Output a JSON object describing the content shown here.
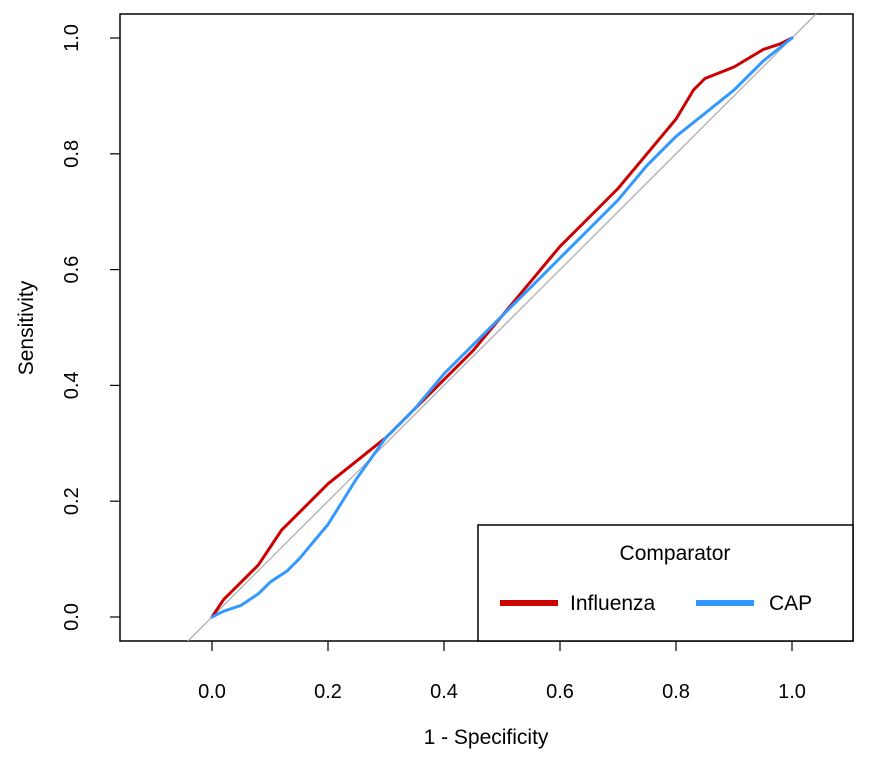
{
  "chart_data": {
    "type": "line",
    "title": "",
    "xlabel": "1 - Specificity",
    "ylabel": "Sensitivity",
    "xlim": [
      -0.14,
      1.14
    ],
    "ylim": [
      -0.04,
      1.04
    ],
    "x_ticks": [
      "0.0",
      "0.2",
      "0.4",
      "0.6",
      "0.8",
      "1.0"
    ],
    "y_ticks": [
      "0.0",
      "0.2",
      "0.4",
      "0.6",
      "0.8",
      "1.0"
    ],
    "reference_line": "diagonal y = x",
    "grid": false,
    "legend": {
      "title": "Comparator",
      "placement": "bottom-right",
      "entries": [
        "Influenza",
        "CAP"
      ]
    },
    "series": [
      {
        "name": "Influenza",
        "color": "#cc0000",
        "x": [
          0.0,
          0.02,
          0.04,
          0.06,
          0.08,
          0.1,
          0.12,
          0.15,
          0.18,
          0.2,
          0.25,
          0.3,
          0.35,
          0.4,
          0.45,
          0.5,
          0.55,
          0.6,
          0.65,
          0.7,
          0.75,
          0.8,
          0.83,
          0.85,
          0.9,
          0.95,
          0.98,
          1.0
        ],
        "y": [
          0.0,
          0.03,
          0.05,
          0.07,
          0.09,
          0.12,
          0.15,
          0.18,
          0.21,
          0.23,
          0.27,
          0.31,
          0.36,
          0.41,
          0.46,
          0.52,
          0.58,
          0.64,
          0.69,
          0.74,
          0.8,
          0.86,
          0.91,
          0.93,
          0.95,
          0.98,
          0.99,
          1.0
        ]
      },
      {
        "name": "CAP",
        "color": "#3399ff",
        "x": [
          0.0,
          0.02,
          0.05,
          0.08,
          0.1,
          0.13,
          0.15,
          0.2,
          0.25,
          0.3,
          0.35,
          0.4,
          0.45,
          0.5,
          0.55,
          0.6,
          0.65,
          0.7,
          0.75,
          0.8,
          0.85,
          0.9,
          0.95,
          1.0
        ],
        "y": [
          0.0,
          0.01,
          0.02,
          0.04,
          0.06,
          0.08,
          0.1,
          0.16,
          0.24,
          0.31,
          0.36,
          0.42,
          0.47,
          0.52,
          0.57,
          0.62,
          0.67,
          0.72,
          0.78,
          0.83,
          0.87,
          0.91,
          0.96,
          1.0
        ]
      }
    ]
  }
}
